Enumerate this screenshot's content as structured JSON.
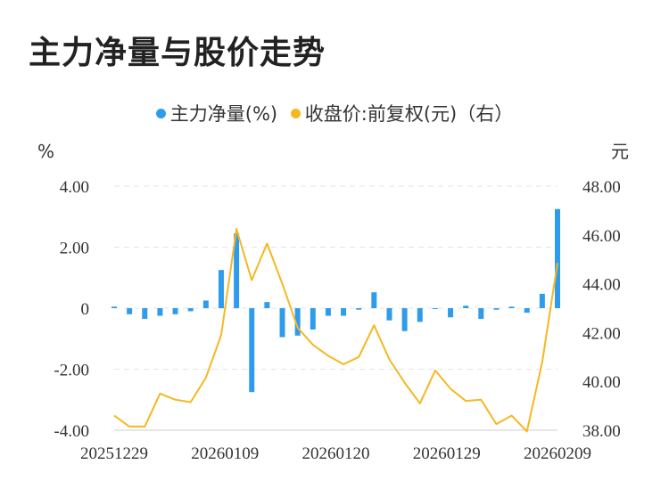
{
  "title": "主力净量与股价走势",
  "chart_data": {
    "type": "bar+line",
    "legend": [
      {
        "label": "主力净量(%)",
        "color": "#2f9ceb"
      },
      {
        "label": "收盘价:前复权(元)（右）",
        "color": "#f5b820"
      }
    ],
    "left_unit": "%",
    "right_unit": "元",
    "left_ticks": [
      "4.00",
      "2.00",
      "0",
      "-2.00",
      "-4.00"
    ],
    "right_ticks": [
      "48.00",
      "46.00",
      "44.00",
      "42.00",
      "40.00",
      "38.00"
    ],
    "x_labels": [
      "20251229",
      "20260109",
      "20260120",
      "20260129",
      "20260209"
    ],
    "left_ylim": [
      -4,
      4
    ],
    "right_ylim": [
      38,
      48
    ],
    "grid": true,
    "series": [
      {
        "name": "主力净量(%)",
        "kind": "bar",
        "values": [
          0.05,
          -0.2,
          -0.35,
          -0.25,
          -0.2,
          -0.1,
          0.25,
          1.25,
          2.45,
          -2.75,
          0.2,
          -0.95,
          -0.9,
          -0.7,
          -0.25,
          -0.25,
          -0.05,
          0.52,
          -0.4,
          -0.75,
          -0.45,
          -0.02,
          -0.3,
          0.08,
          -0.35,
          -0.05,
          0.05,
          -0.15,
          0.47,
          3.25
        ]
      },
      {
        "name": "收盘价:前复权(元)（右）",
        "kind": "line",
        "values": [
          38.6,
          38.15,
          38.15,
          39.5,
          39.25,
          39.15,
          40.15,
          41.9,
          46.25,
          44.15,
          45.65,
          44.0,
          42.2,
          41.5,
          41.05,
          40.7,
          41.0,
          42.3,
          40.9,
          39.95,
          39.1,
          40.45,
          39.7,
          39.2,
          39.25,
          38.25,
          38.6,
          37.95,
          40.8,
          44.85
        ]
      }
    ]
  }
}
